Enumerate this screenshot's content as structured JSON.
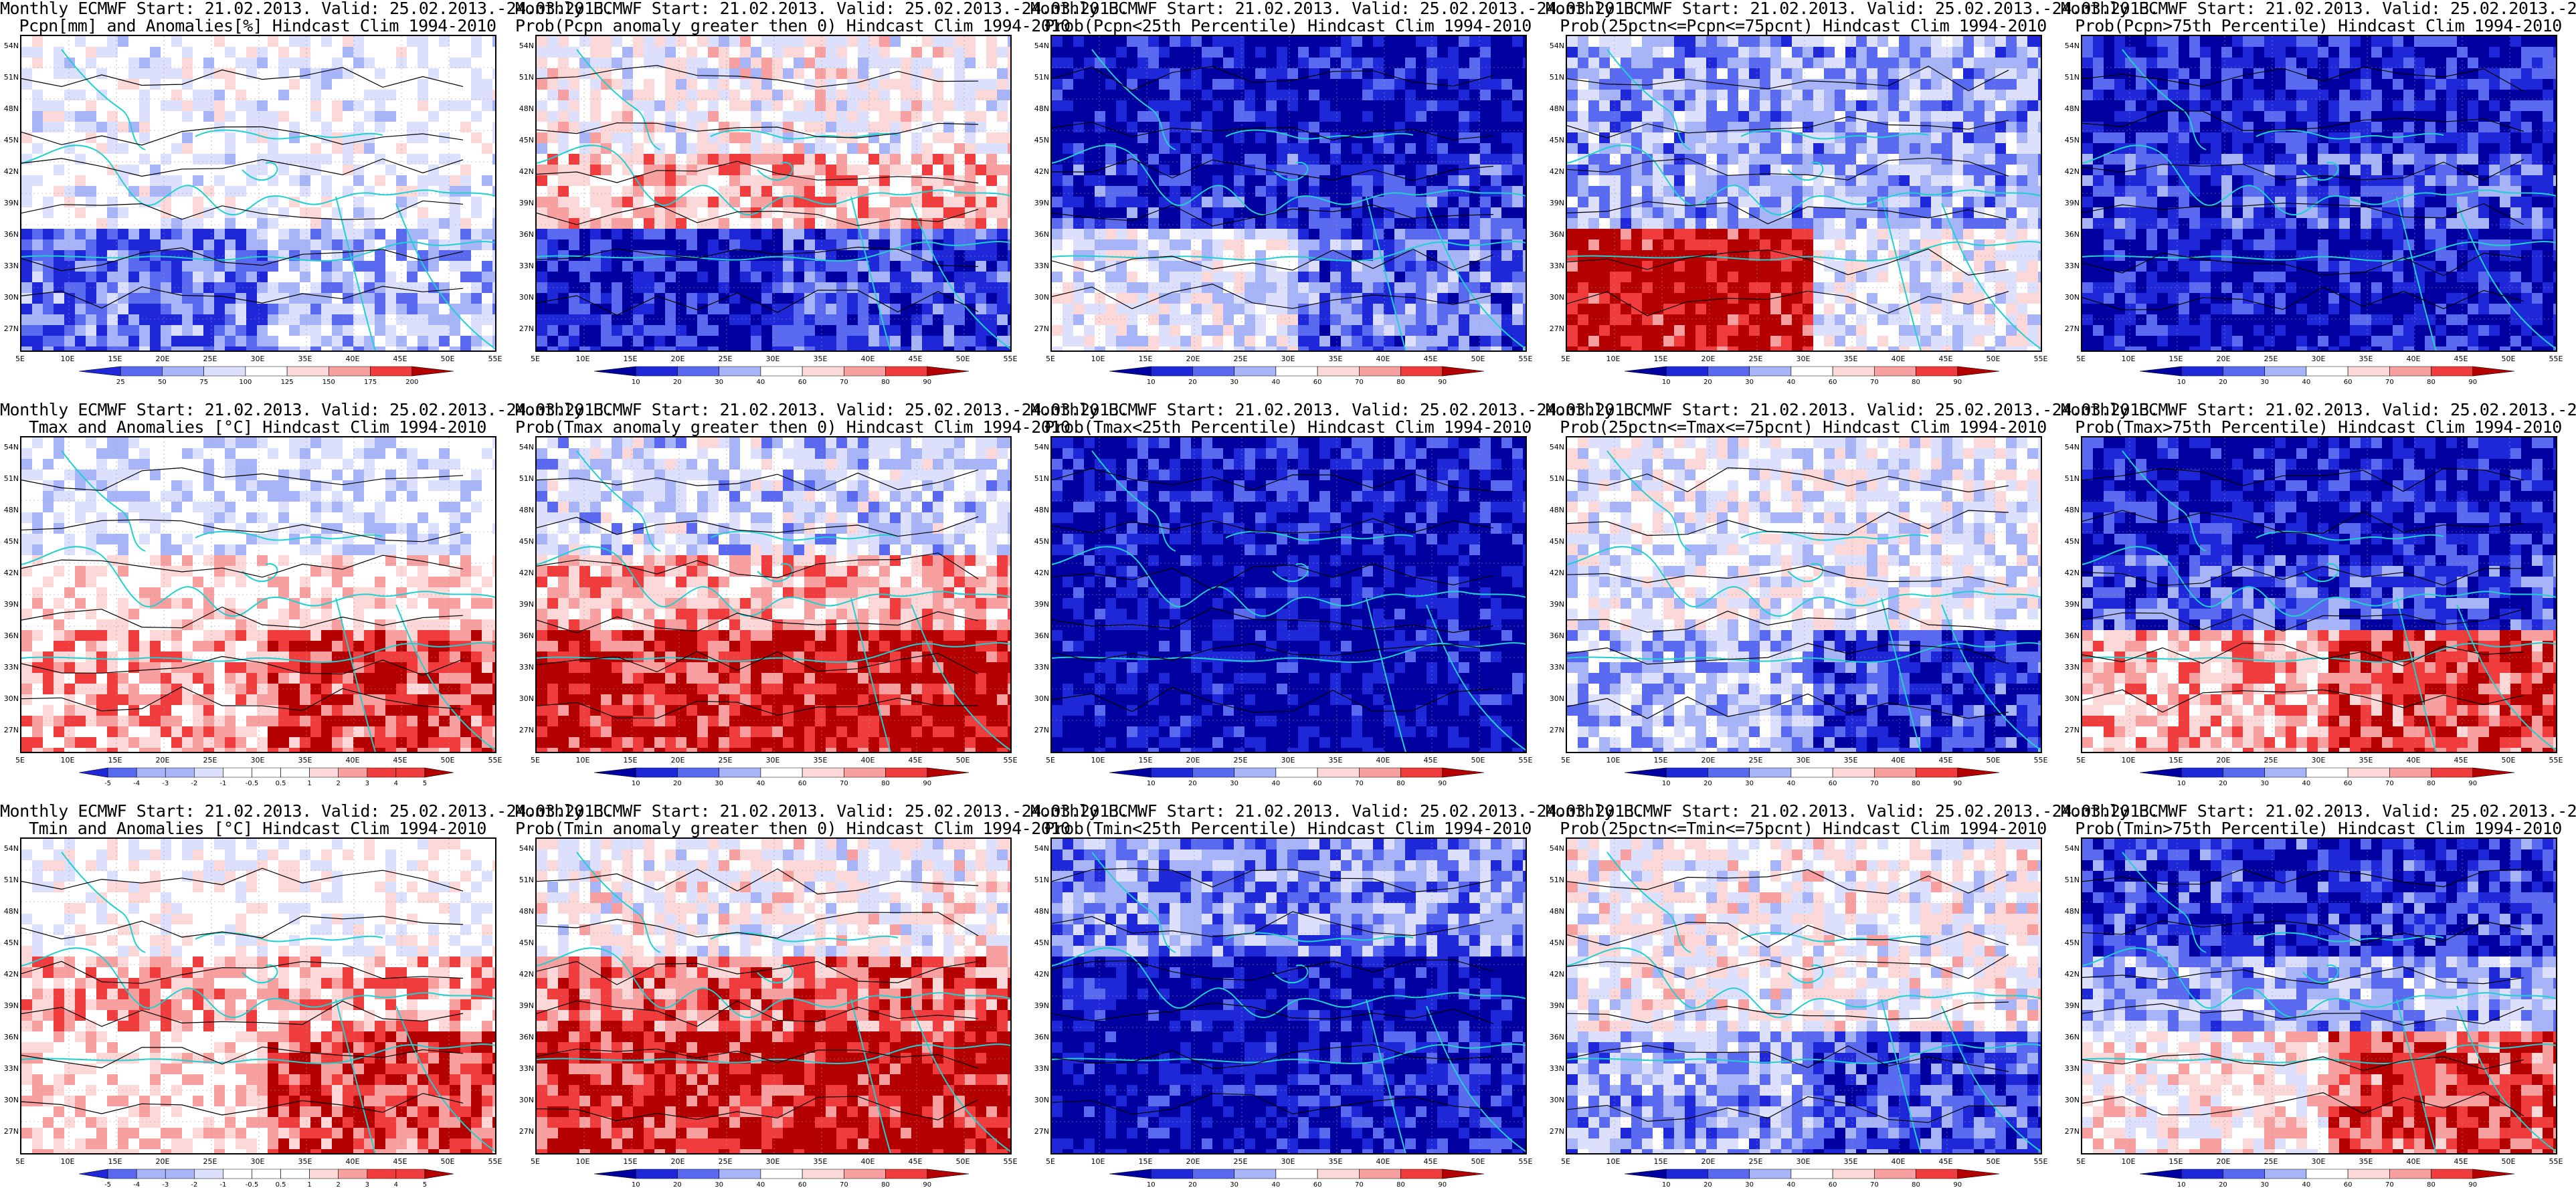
{
  "lat_ticks": [
    "54N",
    "51N",
    "48N",
    "45N",
    "42N",
    "39N",
    "36N",
    "33N",
    "30N",
    "27N"
  ],
  "lon_ticks": [
    "5E",
    "10E",
    "15E",
    "20E",
    "25E",
    "30E",
    "35E",
    "40E",
    "45E",
    "50E",
    "55E"
  ],
  "rows": [
    {
      "title1": "Monthly ECMWF Start: 21.02.2013. Valid: 25.02.2013.-24.03.2013.",
      "panels": [
        {
          "title2": "Pcpn[mm] and Anomalies[%] Hindcast Clim 1994-2010",
          "scheme": "anom",
          "cbar_labels": [
            "25",
            "50",
            "75",
            "100",
            "125",
            "150",
            "175",
            "200"
          ]
        },
        {
          "title2": "Prob(Pcpn anomaly greater then 0) Hindcast Clim 1994-2010",
          "scheme": "prob",
          "cbar_labels": [
            "10",
            "20",
            "30",
            "40",
            "60",
            "70",
            "80",
            "90"
          ]
        },
        {
          "title2": "Prob(Pcpn<25th Percentile) Hindcast Clim 1994-2010",
          "scheme": "prob",
          "cbar_labels": [
            "10",
            "20",
            "30",
            "40",
            "60",
            "70",
            "80",
            "90"
          ]
        },
        {
          "title2": "Prob(25pctn<=Pcpn<=75pcnt) Hindcast Clim 1994-2010",
          "scheme": "prob",
          "cbar_labels": [
            "10",
            "20",
            "30",
            "40",
            "60",
            "70",
            "80",
            "90"
          ]
        },
        {
          "title2": "Prob(Pcpn>75th Percentile) Hindcast Clim 1994-2010",
          "scheme": "prob",
          "cbar_labels": [
            "10",
            "20",
            "30",
            "40",
            "60",
            "70",
            "80",
            "90"
          ]
        }
      ]
    },
    {
      "title1": "Monthly ECMWF Start: 21.02.2013. Valid: 25.02.2013.-24.03.2013.",
      "panels": [
        {
          "title2": "Tmax and Anomalies [°C] Hindcast Clim 1994-2010",
          "scheme": "anom",
          "cbar_labels": [
            "-5",
            "-4",
            "-3",
            "-2",
            "-1",
            "-0.5",
            "0.5",
            "1",
            "2",
            "3",
            "4",
            "5"
          ]
        },
        {
          "title2": "Prob(Tmax anomaly greater then 0) Hindcast Clim 1994-2010",
          "scheme": "prob",
          "cbar_labels": [
            "10",
            "20",
            "30",
            "40",
            "60",
            "70",
            "80",
            "90"
          ]
        },
        {
          "title2": "Prob(Tmax<25th Percentile) Hindcast Clim 1994-2010",
          "scheme": "prob",
          "cbar_labels": [
            "10",
            "20",
            "30",
            "40",
            "60",
            "70",
            "80",
            "90"
          ]
        },
        {
          "title2": "Prob(25pctn<=Tmax<=75pcnt) Hindcast Clim 1994-2010",
          "scheme": "prob",
          "cbar_labels": [
            "10",
            "20",
            "30",
            "40",
            "60",
            "70",
            "80",
            "90"
          ]
        },
        {
          "title2": "Prob(Tmax>75th Percentile) Hindcast Clim 1994-2010",
          "scheme": "prob",
          "cbar_labels": [
            "10",
            "20",
            "30",
            "40",
            "60",
            "70",
            "80",
            "90"
          ]
        }
      ]
    },
    {
      "title1": "Monthly ECMWF Start: 21.02.2013. Valid: 25.02.2013.-24.03.2013.",
      "panels": [
        {
          "title2": "Tmin and Anomalies [°C] Hindcast Clim 1994-2010",
          "scheme": "anom",
          "cbar_labels": [
            "-5",
            "-4",
            "-3",
            "-2",
            "-1",
            "-0.5",
            "0.5",
            "1",
            "2",
            "3",
            "4",
            "5"
          ]
        },
        {
          "title2": "Prob(Tmin anomaly greater then 0) Hindcast Clim 1994-2010",
          "scheme": "prob",
          "cbar_labels": [
            "10",
            "20",
            "30",
            "40",
            "60",
            "70",
            "80",
            "90"
          ]
        },
        {
          "title2": "Prob(Tmin<25th Percentile) Hindcast Clim 1994-2010",
          "scheme": "prob",
          "cbar_labels": [
            "10",
            "20",
            "30",
            "40",
            "60",
            "70",
            "80",
            "90"
          ]
        },
        {
          "title2": "Prob(25pctn<=Tmin<=75pcnt) Hindcast Clim 1994-2010",
          "scheme": "prob",
          "cbar_labels": [
            "10",
            "20",
            "30",
            "40",
            "60",
            "70",
            "80",
            "90"
          ]
        },
        {
          "title2": "Prob(Tmin>75th Percentile) Hindcast Clim 1994-2010",
          "scheme": "prob",
          "cbar_labels": [
            "10",
            "20",
            "30",
            "40",
            "60",
            "70",
            "80",
            "90"
          ]
        }
      ]
    }
  ],
  "colors": {
    "deep_blue": "#0000a0",
    "blue": "#1e28d8",
    "mid_blue": "#5a6af0",
    "light_blue": "#a8b4f8",
    "pale_blue": "#dce0fc",
    "white": "#ffffff",
    "pale_red": "#fcd8d8",
    "light_red": "#f8a0a0",
    "red": "#f03c3c",
    "dark_red": "#b40000",
    "coast": "#20d0d0",
    "contour": "#000000"
  }
}
